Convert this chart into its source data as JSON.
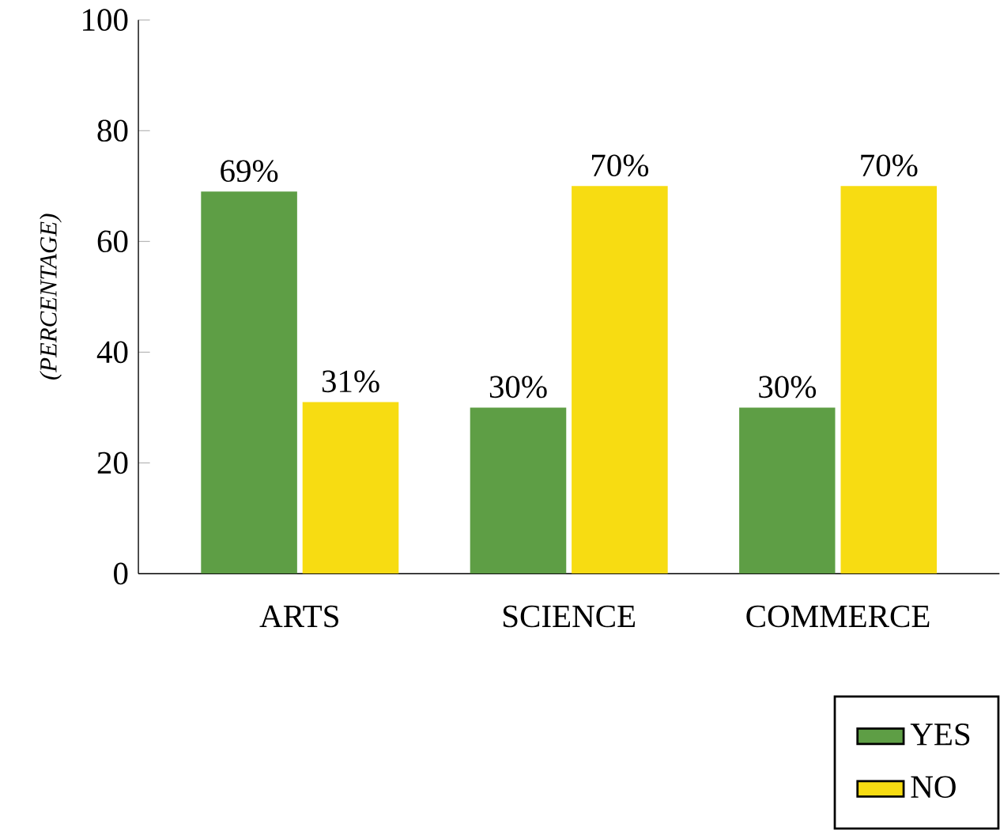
{
  "chart_data": {
    "type": "bar",
    "ylabel": "(PERCENTAGE)",
    "categories": [
      "ARTS",
      "SCIENCE",
      "COMMERCE"
    ],
    "series": [
      {
        "name": "YES",
        "color": "#5e9e45",
        "values": [
          69,
          30,
          30
        ],
        "value_labels": [
          "69%",
          "30%",
          "30%"
        ]
      },
      {
        "name": "NO",
        "color": "#f7dc12",
        "values": [
          31,
          70,
          70
        ],
        "value_labels": [
          "31%",
          "70%",
          "70%"
        ]
      }
    ],
    "ylim": [
      0,
      100
    ],
    "yticks": [
      0,
      20,
      40,
      60,
      80,
      100
    ],
    "grid": false,
    "legend": "bottom right"
  }
}
